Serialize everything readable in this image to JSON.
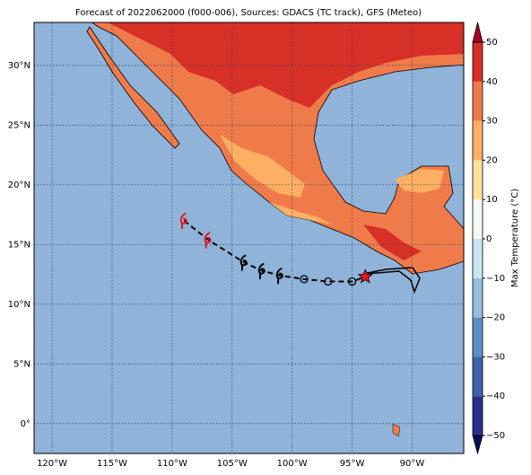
{
  "chart_data": {
    "type": "map",
    "title": "Forecast of 2022062000 (f000-006), Sources: GDACS (TC track), GFS (Meteo)",
    "xlim": [
      -121.5,
      -85.7
    ],
    "ylim": [
      -2.5,
      33.6
    ],
    "xticks": [
      {
        "value": -120,
        "label": "120°W"
      },
      {
        "value": -115,
        "label": "115°W"
      },
      {
        "value": -110,
        "label": "110°W"
      },
      {
        "value": -105,
        "label": "105°W"
      },
      {
        "value": -100,
        "label": "100°W"
      },
      {
        "value": -95,
        "label": "95°W"
      },
      {
        "value": -90,
        "label": "90°W"
      }
    ],
    "yticks": [
      {
        "value": 0,
        "label": "0°"
      },
      {
        "value": 5,
        "label": "5°N"
      },
      {
        "value": 10,
        "label": "10°N"
      },
      {
        "value": 15,
        "label": "15°N"
      },
      {
        "value": 20,
        "label": "20°N"
      },
      {
        "value": 25,
        "label": "25°N"
      },
      {
        "value": 30,
        "label": "30°N"
      }
    ],
    "grid": true,
    "ocean_color": "#8fb3d9",
    "track": {
      "lon": [
        -109,
        -107,
        -104,
        -102.5,
        -101,
        -99,
        -97,
        -95,
        -93.9
      ],
      "lat": [
        17,
        15.4,
        13.5,
        12.8,
        12.4,
        12.1,
        11.9,
        11.9,
        12.3
      ]
    },
    "colorbar": {
      "label": "Max Temperature (°C)",
      "ticks": [
        {
          "value": -50,
          "label": "−50"
        },
        {
          "value": -40,
          "label": "−40"
        },
        {
          "value": -30,
          "label": "−30"
        },
        {
          "value": -20,
          "label": "−20"
        },
        {
          "value": -10,
          "label": "−10"
        },
        0,
        10,
        20,
        30,
        40,
        50
      ],
      "colors": [
        "#2b2f8c",
        "#3f62ad",
        "#5d91c4",
        "#92c0dd",
        "#c8e6ef",
        "#f3faf4",
        "#fee29b",
        "#fdb064",
        "#f07b4a",
        "#d73027"
      ],
      "under_color": "#0a0f5a",
      "over_color": "#a50026"
    }
  }
}
